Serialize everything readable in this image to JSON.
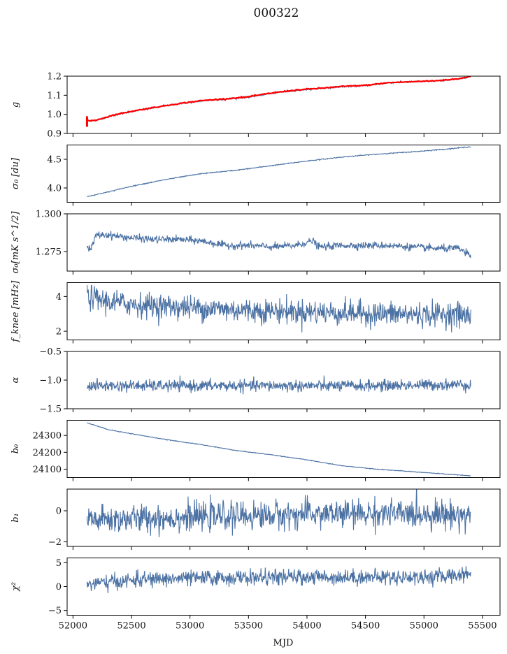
{
  "title": "000322",
  "xlabel": "MJD",
  "chart_data": {
    "type": "line",
    "title": "000322",
    "xlabel": "MJD",
    "xlim": [
      51950,
      55650
    ],
    "xticks": [
      52000,
      52500,
      53000,
      53500,
      54000,
      54500,
      55000,
      55500
    ],
    "xtick_labels": [
      "52000",
      "52500",
      "53000",
      "53500",
      "54000",
      "54500",
      "55000",
      "55500"
    ],
    "line_color": "#4c72a4",
    "overlay_color": "#ff0000",
    "panels": [
      {
        "key": "g",
        "ylabel": "g",
        "ylim": [
          0.9,
          1.2
        ],
        "yticks": [
          0.9,
          1.0,
          1.1,
          1.2
        ],
        "ytick_labels": [
          "0.9",
          "1.0",
          "1.1",
          "1.2"
        ],
        "noise": 0.002,
        "x": [
          52120,
          52200,
          52350,
          52500,
          52700,
          52900,
          53100,
          53300,
          53500,
          53700,
          53900,
          54100,
          54300,
          54500,
          54700,
          54900,
          55100,
          55300,
          55400
        ],
        "y": [
          0.965,
          0.97,
          0.995,
          1.015,
          1.035,
          1.055,
          1.07,
          1.08,
          1.09,
          1.11,
          1.125,
          1.135,
          1.145,
          1.15,
          1.165,
          1.17,
          1.175,
          1.185,
          1.2
        ],
        "overlay": {
          "x": [
            52120,
            52200,
            52350,
            52500,
            52700,
            52900,
            53100,
            53300,
            53500,
            53700,
            53900,
            54100,
            54300,
            54500,
            54700,
            54900,
            55100,
            55300,
            55400
          ],
          "y": [
            0.965,
            0.97,
            0.997,
            1.016,
            1.037,
            1.056,
            1.072,
            1.081,
            1.092,
            1.112,
            1.127,
            1.136,
            1.146,
            1.152,
            1.166,
            1.171,
            1.176,
            1.186,
            1.2
          ],
          "spike_x": 52120,
          "spike_range": [
            0.935,
            0.99
          ]
        }
      },
      {
        "key": "sigma0_du",
        "ylabel": "σ₀ [du]",
        "ylim": [
          3.75,
          4.75
        ],
        "yticks": [
          4.0,
          4.5
        ],
        "ytick_labels": [
          "4.0",
          "4.5"
        ],
        "noise": 0.004,
        "x": [
          52120,
          52300,
          52500,
          52800,
          53100,
          53400,
          53700,
          54000,
          54300,
          54600,
          54900,
          55200,
          55400
        ],
        "y": [
          3.85,
          3.93,
          4.03,
          4.15,
          4.25,
          4.31,
          4.39,
          4.47,
          4.54,
          4.59,
          4.63,
          4.68,
          4.72
        ]
      },
      {
        "key": "sigma0_mk",
        "ylabel": "σ₀[mK s^1/2]",
        "ylim": [
          1.262,
          1.3
        ],
        "yticks": [
          1.275,
          1.3
        ],
        "ytick_labels": [
          "1.275",
          "1.300"
        ],
        "noise": 0.0012,
        "x": [
          52120,
          52150,
          52200,
          52300,
          52500,
          52700,
          52900,
          53100,
          53300,
          53500,
          53700,
          53900,
          54050,
          54100,
          54300,
          54500,
          54700,
          54900,
          55100,
          55300,
          55400
        ],
        "y": [
          1.278,
          1.276,
          1.286,
          1.286,
          1.284,
          1.283,
          1.283,
          1.282,
          1.279,
          1.279,
          1.278,
          1.279,
          1.282,
          1.278,
          1.279,
          1.279,
          1.279,
          1.278,
          1.277,
          1.277,
          1.272
        ]
      },
      {
        "key": "fknee",
        "ylabel": "f_knee [mHz]",
        "ylim": [
          1.5,
          4.8
        ],
        "yticks": [
          2,
          4
        ],
        "ytick_labels": [
          "2",
          "4"
        ],
        "noise": 0.35,
        "x": [
          52120,
          52300,
          52600,
          52900,
          53200,
          53500,
          53800,
          54100,
          54400,
          54700,
          55000,
          55300,
          55400
        ],
        "y": [
          4.0,
          3.7,
          3.5,
          3.4,
          3.3,
          3.2,
          3.15,
          3.1,
          3.05,
          3.0,
          2.95,
          3.0,
          2.8
        ]
      },
      {
        "key": "alpha",
        "ylabel": "α",
        "ylim": [
          -1.5,
          -0.5
        ],
        "yticks": [
          -1.5,
          -1.0,
          -0.5
        ],
        "ytick_labels": [
          "−1.5",
          "−1.0",
          "−0.5"
        ],
        "noise": 0.05,
        "x": [
          52120,
          52600,
          53100,
          53600,
          54100,
          54600,
          55100,
          55400
        ],
        "y": [
          -1.1,
          -1.1,
          -1.1,
          -1.1,
          -1.1,
          -1.1,
          -1.08,
          -1.08
        ]
      },
      {
        "key": "b0",
        "ylabel": "b₀",
        "ylim": [
          24050,
          24390
        ],
        "yticks": [
          24100,
          24200,
          24300
        ],
        "ytick_labels": [
          "24100",
          "24200",
          "24300"
        ],
        "noise": 1.0,
        "x": [
          52120,
          52300,
          52500,
          52800,
          53100,
          53400,
          53700,
          54000,
          54300,
          54600,
          54900,
          55200,
          55400
        ],
        "y": [
          24375,
          24335,
          24310,
          24275,
          24245,
          24210,
          24185,
          24155,
          24120,
          24100,
          24085,
          24070,
          24060
        ]
      },
      {
        "key": "b1",
        "ylabel": "b₁",
        "ylim": [
          -2.3,
          1.4
        ],
        "yticks": [
          -2,
          0
        ],
        "ytick_labels": [
          "−2",
          "0"
        ],
        "noise": 0.45,
        "x": [
          52120,
          52600,
          53100,
          53600,
          54100,
          54600,
          55100,
          55400
        ],
        "y": [
          -0.6,
          -0.5,
          -0.4,
          -0.3,
          -0.2,
          -0.2,
          -0.2,
          -0.3
        ]
      },
      {
        "key": "chi2",
        "ylabel": "χ²",
        "ylim": [
          -6,
          6
        ],
        "yticks": [
          -5,
          0,
          5
        ],
        "ytick_labels": [
          "−5",
          "0",
          "5"
        ],
        "noise": 0.8,
        "x": [
          52120,
          52600,
          53100,
          53600,
          54100,
          54600,
          55100,
          55400
        ],
        "y": [
          0.5,
          1.5,
          1.8,
          1.9,
          2.0,
          2.0,
          2.0,
          2.8
        ]
      }
    ]
  }
}
